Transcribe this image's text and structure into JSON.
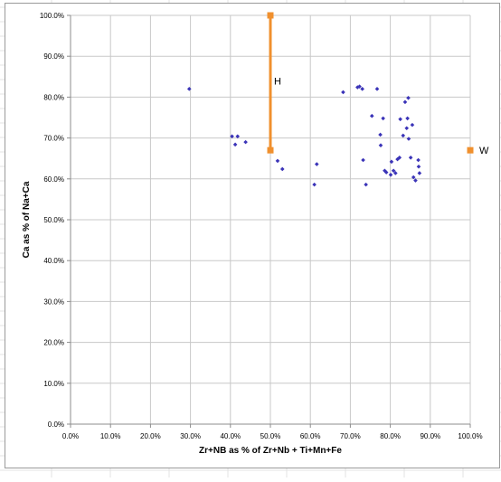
{
  "chart_data": {
    "type": "scatter",
    "title": "",
    "xlabel": "Zr+NB as % of Zr+Nb + Ti+Mn+Fe",
    "ylabel": "Ca as % of Na+Ca",
    "xlim": [
      0,
      100
    ],
    "ylim": [
      0,
      100
    ],
    "x_ticks": [
      "0.0%",
      "10.0%",
      "20.0%",
      "30.0%",
      "40.0%",
      "50.0%",
      "60.0%",
      "70.0%",
      "80.0%",
      "90.0%",
      "100.0%"
    ],
    "y_ticks": [
      "0.0%",
      "10.0%",
      "20.0%",
      "30.0%",
      "40.0%",
      "50.0%",
      "60.0%",
      "70.0%",
      "80.0%",
      "90.0%",
      "100.0%"
    ],
    "grid": true,
    "legend": "none",
    "series": [
      {
        "color": "#3b34b8",
        "marker": "diamond",
        "points": [
          [
            29.7,
            82.0
          ],
          [
            40.4,
            70.4
          ],
          [
            41.8,
            70.4
          ],
          [
            41.2,
            68.4
          ],
          [
            43.8,
            69.0
          ],
          [
            51.8,
            64.4
          ],
          [
            53.0,
            62.4
          ],
          [
            61.0,
            58.6
          ],
          [
            61.6,
            63.6
          ],
          [
            68.2,
            81.2
          ],
          [
            71.8,
            82.4
          ],
          [
            72.3,
            82.6
          ],
          [
            73.0,
            82.0
          ],
          [
            73.2,
            64.6
          ],
          [
            73.9,
            58.6
          ],
          [
            75.4,
            75.4
          ],
          [
            76.7,
            82.0
          ],
          [
            77.5,
            70.8
          ],
          [
            77.6,
            68.2
          ],
          [
            78.2,
            74.8
          ],
          [
            78.6,
            62.0
          ],
          [
            79.0,
            61.6
          ],
          [
            80.1,
            61.0
          ],
          [
            80.3,
            64.2
          ],
          [
            80.8,
            62.0
          ],
          [
            81.3,
            61.4
          ],
          [
            81.8,
            64.8
          ],
          [
            82.3,
            65.2
          ],
          [
            82.5,
            74.6
          ],
          [
            83.2,
            70.6
          ],
          [
            83.7,
            78.8
          ],
          [
            84.1,
            72.4
          ],
          [
            84.3,
            74.8
          ],
          [
            84.5,
            79.8
          ],
          [
            84.6,
            69.8
          ],
          [
            85.1,
            65.2
          ],
          [
            85.5,
            73.2
          ],
          [
            85.8,
            60.4
          ],
          [
            86.3,
            59.6
          ],
          [
            87.0,
            64.6
          ],
          [
            87.1,
            63.0
          ],
          [
            87.3,
            61.4
          ]
        ]
      },
      {
        "color": "#f0902e",
        "marker": "square",
        "points": [
          [
            50.0,
            100.0
          ],
          [
            50.0,
            67.0
          ],
          [
            100.0,
            67.0
          ]
        ],
        "segments": [
          [
            [
              50.0,
              100.0
            ],
            [
              50.0,
              67.0
            ]
          ]
        ]
      }
    ],
    "annotations": [
      {
        "text": "H",
        "x": 50.0,
        "y": 84.0
      },
      {
        "text": "W",
        "x": 100.0,
        "y": 67.0
      }
    ]
  }
}
